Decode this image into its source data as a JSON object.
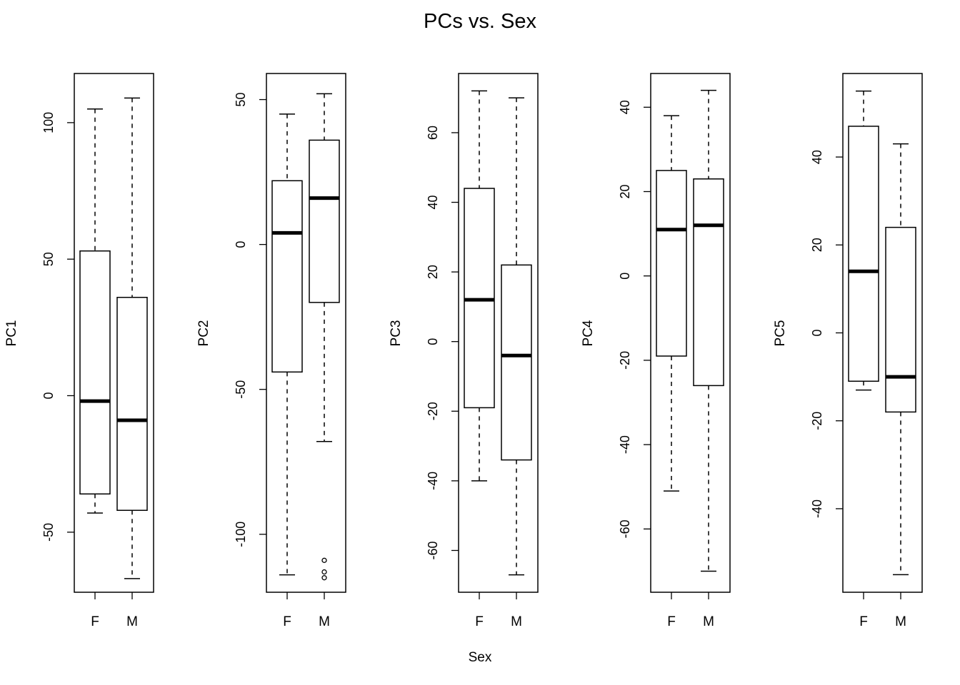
{
  "title": "PCs vs. Sex",
  "xlabel": "Sex",
  "chart_data": [
    {
      "type": "boxplot",
      "ylabel": "PC1",
      "categories": [
        "F",
        "M"
      ],
      "ylim": [
        -72,
        118
      ],
      "yticks": [
        -50,
        0,
        50,
        100
      ],
      "boxes": [
        {
          "whisker_low": -43,
          "q1": -36,
          "median": -2,
          "q3": 53,
          "whisker_high": 105,
          "outliers": []
        },
        {
          "whisker_low": -67,
          "q1": -42,
          "median": -9,
          "q3": 36,
          "whisker_high": 109,
          "outliers": []
        }
      ]
    },
    {
      "type": "boxplot",
      "ylabel": "PC2",
      "categories": [
        "F",
        "M"
      ],
      "ylim": [
        -120,
        59
      ],
      "yticks": [
        -100,
        -50,
        0,
        50
      ],
      "boxes": [
        {
          "whisker_low": -114,
          "q1": -44,
          "median": 4,
          "q3": 22,
          "whisker_high": 45,
          "outliers": []
        },
        {
          "whisker_low": -68,
          "q1": -20,
          "median": 16,
          "q3": 36,
          "whisker_high": 52,
          "outliers": [
            -109,
            -113,
            -115
          ]
        }
      ]
    },
    {
      "type": "boxplot",
      "ylabel": "PC3",
      "categories": [
        "F",
        "M"
      ],
      "ylim": [
        -72,
        77
      ],
      "yticks": [
        -60,
        -40,
        -20,
        0,
        20,
        40,
        60
      ],
      "boxes": [
        {
          "whisker_low": -40,
          "q1": -19,
          "median": 12,
          "q3": 44,
          "whisker_high": 72,
          "outliers": []
        },
        {
          "whisker_low": -67,
          "q1": -34,
          "median": -4,
          "q3": 22,
          "whisker_high": 70,
          "outliers": []
        }
      ]
    },
    {
      "type": "boxplot",
      "ylabel": "PC4",
      "categories": [
        "F",
        "M"
      ],
      "ylim": [
        -75,
        48
      ],
      "yticks": [
        -60,
        -40,
        -20,
        0,
        20,
        40
      ],
      "boxes": [
        {
          "whisker_low": -51,
          "q1": -19,
          "median": 11,
          "q3": 25,
          "whisker_high": 38,
          "outliers": []
        },
        {
          "whisker_low": -70,
          "q1": -26,
          "median": 12,
          "q3": 23,
          "whisker_high": 44,
          "outliers": []
        }
      ]
    },
    {
      "type": "boxplot",
      "ylabel": "PC5",
      "categories": [
        "F",
        "M"
      ],
      "ylim": [
        -59,
        59
      ],
      "yticks": [
        -40,
        -20,
        0,
        20,
        40
      ],
      "boxes": [
        {
          "whisker_low": -13,
          "q1": -11,
          "median": 14,
          "q3": 47,
          "whisker_high": 55,
          "outliers": []
        },
        {
          "whisker_low": -55,
          "q1": -18,
          "median": -10,
          "q3": 24,
          "whisker_high": 43,
          "outliers": []
        }
      ]
    }
  ]
}
